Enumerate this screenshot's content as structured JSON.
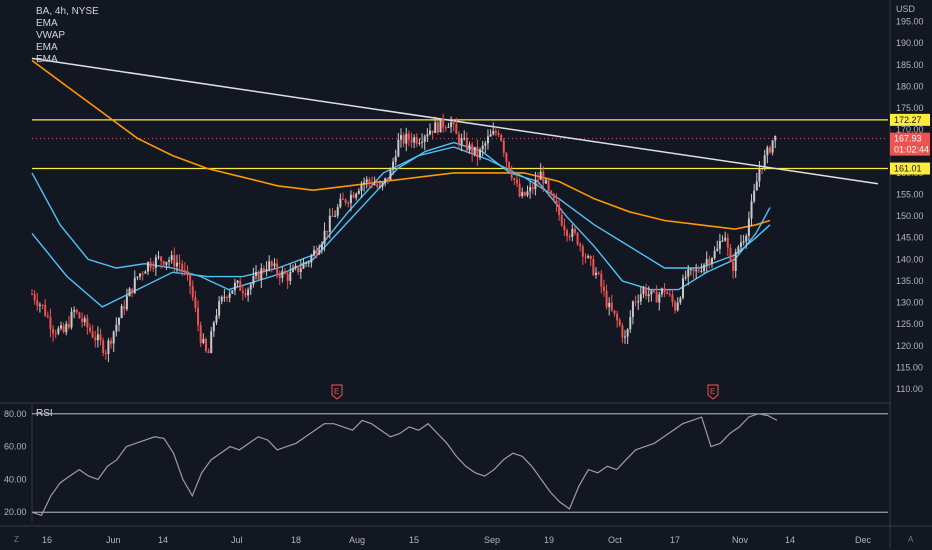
{
  "legend": {
    "symbol": "BA, 4h, NYSE",
    "indicators": [
      "EMA",
      "VWAP",
      "EMA",
      "EMA"
    ]
  },
  "currency": "USD",
  "rsi_label": "RSI",
  "corner_left": "Z",
  "corner_right": "A",
  "colors": {
    "background": "#131722",
    "up": "#26a69a",
    "down": "#ef5350",
    "candle": "#c9c9c9",
    "trendline": "#e0e0e0",
    "hline": "#ffeb3b",
    "ema_fast": "#4fc3f7",
    "vwap": "#4fc3f7",
    "ema_slow": "#ff9800",
    "rsi": "#9e9e9e"
  },
  "chart_data": [
    {
      "type": "line",
      "name": "price",
      "yaxis_ticks": [
        110,
        115,
        120,
        125,
        130,
        135,
        140,
        145,
        150,
        155,
        160,
        165,
        170,
        175,
        180,
        185,
        190,
        195
      ],
      "ylim": [
        107,
        200
      ],
      "xaxis_ticks": [
        "16",
        "Jun",
        "14",
        "Jul",
        "18",
        "Aug",
        "15",
        "Sep",
        "19",
        "Oct",
        "17",
        "Nov",
        "14",
        "Dec"
      ],
      "price_labels": {
        "resistance": "172.27",
        "current": "167.93",
        "countdown": "01:02:44",
        "support": "161.01"
      },
      "horizontal_lines": [
        172.27,
        161.01
      ],
      "trendline": {
        "start": 186.5,
        "end": 157.5
      },
      "earnings_markers": [
        "E",
        "E"
      ],
      "price_path": [
        [
          0,
          132
        ],
        [
          3,
          129
        ],
        [
          6,
          124
        ],
        [
          9,
          123
        ],
        [
          12,
          128
        ],
        [
          15,
          125
        ],
        [
          18,
          122
        ],
        [
          21,
          119
        ],
        [
          24,
          125
        ],
        [
          27,
          131
        ],
        [
          30,
          136
        ],
        [
          33,
          139
        ],
        [
          36,
          140
        ],
        [
          39,
          140
        ],
        [
          42,
          139
        ],
        [
          45,
          134
        ],
        [
          48,
          122
        ],
        [
          50,
          117
        ],
        [
          52,
          127
        ],
        [
          55,
          132
        ],
        [
          58,
          134
        ],
        [
          61,
          133
        ],
        [
          64,
          136
        ],
        [
          67,
          139
        ],
        [
          70,
          137
        ],
        [
          73,
          136
        ],
        [
          76,
          138
        ],
        [
          79,
          140
        ],
        [
          82,
          144
        ],
        [
          85,
          149
        ],
        [
          88,
          153
        ],
        [
          91,
          155
        ],
        [
          94,
          158
        ],
        [
          97,
          158
        ],
        [
          99,
          156
        ],
        [
          102,
          160
        ],
        [
          104,
          167
        ],
        [
          107,
          168
        ],
        [
          110,
          168
        ],
        [
          113,
          170
        ],
        [
          116,
          171
        ],
        [
          119,
          172
        ],
        [
          121,
          168
        ],
        [
          124,
          166
        ],
        [
          127,
          164
        ],
        [
          130,
          168
        ],
        [
          133,
          170
        ],
        [
          135,
          163
        ],
        [
          137,
          159
        ],
        [
          139,
          154
        ],
        [
          142,
          156
        ],
        [
          145,
          160
        ],
        [
          147,
          155
        ],
        [
          149,
          152
        ],
        [
          152,
          147
        ],
        [
          155,
          145
        ],
        [
          158,
          140
        ],
        [
          161,
          136
        ],
        [
          164,
          129
        ],
        [
          167,
          125
        ],
        [
          169,
          121
        ],
        [
          171,
          130
        ],
        [
          174,
          133
        ],
        [
          177,
          131
        ],
        [
          180,
          133
        ],
        [
          183,
          129
        ],
        [
          186,
          136
        ],
        [
          189,
          137
        ],
        [
          192,
          140
        ],
        [
          195,
          142
        ],
        [
          197,
          147
        ],
        [
          199,
          137
        ],
        [
          201,
          143
        ],
        [
          203,
          146
        ],
        [
          205,
          153
        ],
        [
          207,
          161
        ],
        [
          209,
          164
        ],
        [
          211,
          168
        ],
        [
          212,
          168
        ]
      ],
      "ema_fast": [
        [
          0,
          160
        ],
        [
          8,
          148
        ],
        [
          16,
          140
        ],
        [
          24,
          138
        ],
        [
          32,
          139
        ],
        [
          40,
          138
        ],
        [
          48,
          136
        ],
        [
          56,
          133
        ],
        [
          64,
          135
        ],
        [
          72,
          137
        ],
        [
          80,
          140
        ],
        [
          88,
          147
        ],
        [
          96,
          154
        ],
        [
          104,
          161
        ],
        [
          112,
          165
        ],
        [
          120,
          167
        ],
        [
          128,
          165
        ],
        [
          136,
          160
        ],
        [
          144,
          158
        ],
        [
          152,
          150
        ],
        [
          160,
          143
        ],
        [
          168,
          135
        ],
        [
          176,
          133
        ],
        [
          184,
          133
        ],
        [
          192,
          137
        ],
        [
          200,
          140
        ],
        [
          206,
          146
        ],
        [
          210,
          152
        ]
      ],
      "vwap": [
        [
          0,
          146
        ],
        [
          10,
          136
        ],
        [
          20,
          129
        ],
        [
          30,
          133
        ],
        [
          40,
          137
        ],
        [
          50,
          136
        ],
        [
          60,
          136
        ],
        [
          70,
          138
        ],
        [
          80,
          141
        ],
        [
          90,
          151
        ],
        [
          100,
          160
        ],
        [
          110,
          164
        ],
        [
          120,
          166
        ],
        [
          130,
          163
        ],
        [
          140,
          159
        ],
        [
          150,
          154
        ],
        [
          160,
          148
        ],
        [
          170,
          143
        ],
        [
          180,
          138
        ],
        [
          190,
          138
        ],
        [
          200,
          141
        ],
        [
          206,
          145
        ],
        [
          210,
          148
        ]
      ],
      "ema_slow": [
        [
          0,
          186
        ],
        [
          10,
          180
        ],
        [
          20,
          174
        ],
        [
          30,
          168
        ],
        [
          40,
          164
        ],
        [
          50,
          161
        ],
        [
          60,
          159
        ],
        [
          70,
          157
        ],
        [
          80,
          156
        ],
        [
          90,
          157
        ],
        [
          100,
          158
        ],
        [
          110,
          159
        ],
        [
          120,
          160
        ],
        [
          130,
          160
        ],
        [
          140,
          160
        ],
        [
          150,
          158
        ],
        [
          160,
          154
        ],
        [
          170,
          151
        ],
        [
          180,
          149
        ],
        [
          190,
          148
        ],
        [
          200,
          147
        ],
        [
          206,
          148
        ],
        [
          210,
          149
        ]
      ]
    },
    {
      "type": "line",
      "name": "RSI",
      "yaxis_ticks": [
        20.0,
        40.0,
        60.0,
        80.0
      ],
      "ylim": [
        14,
        86
      ],
      "bands": [
        80,
        20
      ],
      "values": [
        20,
        18,
        30,
        38,
        42,
        46,
        42,
        40,
        48,
        52,
        60,
        62,
        64,
        66,
        65,
        56,
        40,
        30,
        44,
        52,
        56,
        60,
        58,
        62,
        66,
        64,
        58,
        60,
        62,
        66,
        70,
        74,
        74,
        72,
        70,
        76,
        74,
        70,
        66,
        68,
        72,
        70,
        74,
        68,
        62,
        54,
        48,
        44,
        42,
        46,
        52,
        56,
        54,
        48,
        40,
        32,
        26,
        22,
        36,
        46,
        44,
        48,
        46,
        52,
        58,
        60,
        62,
        66,
        70,
        74,
        76,
        78,
        60,
        62,
        68,
        72,
        78,
        80,
        79,
        76
      ]
    }
  ]
}
